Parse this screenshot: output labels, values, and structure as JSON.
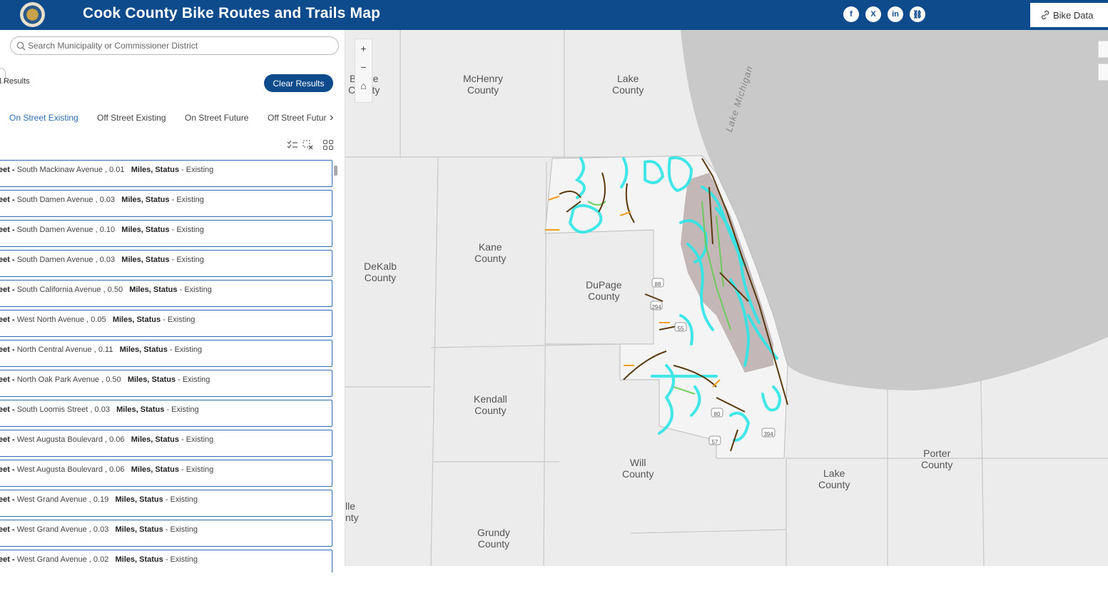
{
  "header": {
    "title": "Cook County Bike Routes and Trails Map",
    "bike_data_label": "Bike Data",
    "social": [
      {
        "icon": "facebook-icon",
        "glyph": "f"
      },
      {
        "icon": "x-icon",
        "glyph": "X"
      },
      {
        "icon": "linkedin-icon",
        "glyph": "in"
      },
      {
        "icon": "link-icon",
        "glyph": "⛓"
      }
    ]
  },
  "panel": {
    "search_placeholder": "Search Municipality or Commissioner District",
    "results_label": "ll Results",
    "clear_label": "Clear Results",
    "tabs": [
      "On Street Existing",
      "Off Street Existing",
      "On Street Future",
      "Off Street Futur"
    ],
    "tab_chevron": "›",
    "rows": [
      {
        "prefix": "eet",
        "street": "South Mackinaw Avenue",
        "miles": "0.01",
        "status": "Existing"
      },
      {
        "prefix": "eet",
        "street": "South Damen Avenue",
        "miles": "0.03",
        "status": "Existing"
      },
      {
        "prefix": "eet",
        "street": "South Damen Avenue",
        "miles": "0.10",
        "status": "Existing"
      },
      {
        "prefix": "eet",
        "street": "South Damen Avenue",
        "miles": "0.03",
        "status": "Existing"
      },
      {
        "prefix": "eet",
        "street": "South California Avenue",
        "miles": "0.50",
        "status": "Existing"
      },
      {
        "prefix": "eet",
        "street": "West North Avenue",
        "miles": "0.05",
        "status": "Existing"
      },
      {
        "prefix": "eet",
        "street": "North Central Avenue",
        "miles": "0.11",
        "status": "Existing"
      },
      {
        "prefix": "eet",
        "street": "North Oak Park Avenue",
        "miles": "0.50",
        "status": "Existing"
      },
      {
        "prefix": "eet",
        "street": "South Loomis Street",
        "miles": "0.03",
        "status": "Existing"
      },
      {
        "prefix": "eet",
        "street": "West Augusta Boulevard",
        "miles": "0.06",
        "status": "Existing"
      },
      {
        "prefix": "eet",
        "street": "West Augusta Boulevard",
        "miles": "0.06",
        "status": "Existing"
      },
      {
        "prefix": "eet",
        "street": "West Grand Avenue",
        "miles": "0.19",
        "status": "Existing"
      },
      {
        "prefix": "eet",
        "street": "West Grand Avenue",
        "miles": "0.03",
        "status": "Existing"
      },
      {
        "prefix": "eet",
        "street": "West Grand Avenue",
        "miles": "0.02",
        "status": "Existing"
      }
    ],
    "miles_status_label": "Miles, Status"
  },
  "map": {
    "zoom_in": "+",
    "zoom_out": "−",
    "home": "⌂",
    "lake_label": "Lake Michigan",
    "counties": [
      {
        "id": "boone",
        "name": "Boone\nCounty"
      },
      {
        "id": "mchenry",
        "name": "McHenry\nCounty"
      },
      {
        "id": "lake-il",
        "name": "Lake\nCounty"
      },
      {
        "id": "kane",
        "name": "Kane\nCounty"
      },
      {
        "id": "dekalb",
        "name": "DeKalb\nCounty"
      },
      {
        "id": "dupage",
        "name": "DuPage\nCounty"
      },
      {
        "id": "kendall",
        "name": "Kendall\nCounty"
      },
      {
        "id": "will",
        "name": "Will\nCounty"
      },
      {
        "id": "lake-in",
        "name": "Lake\nCounty"
      },
      {
        "id": "porter",
        "name": "Porter\nCounty"
      },
      {
        "id": "grundy",
        "name": "Grundy\nCounty"
      },
      {
        "id": "lasalle",
        "name": "lle\nnty"
      }
    ],
    "highway_shields": [
      "88",
      "294",
      "55",
      "80",
      "57",
      "394"
    ]
  },
  "colors": {
    "header_bg": "#0d4b8c",
    "accent": "#2d6db5",
    "trail_cyan": "#2ee6e6",
    "trail_brown": "#5a3a10",
    "trail_orange": "#f0a020",
    "trail_green": "#66cc55",
    "lake": "#c9c9c9"
  }
}
